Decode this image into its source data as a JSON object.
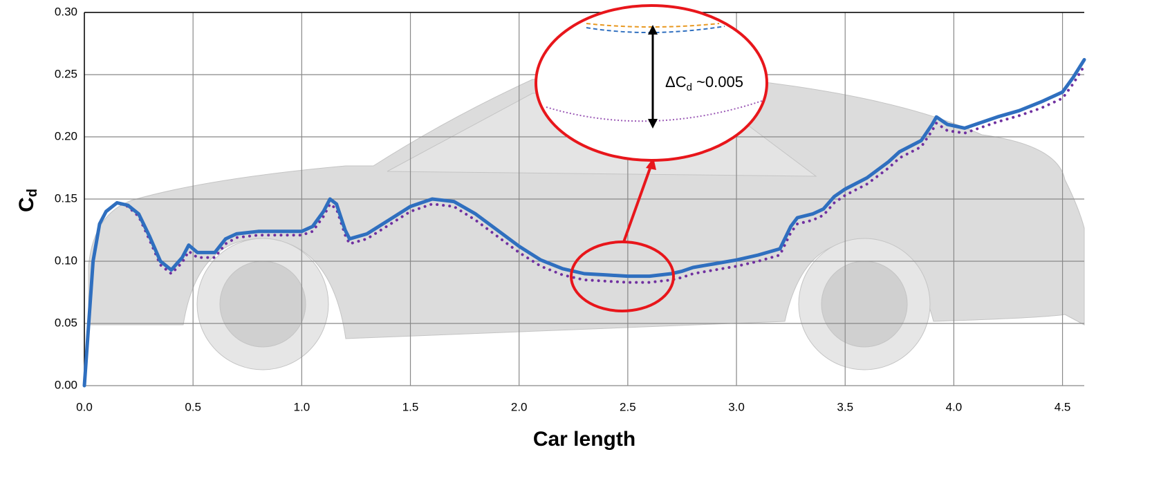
{
  "chart_data": {
    "type": "line",
    "x_label": "Car length",
    "y_label": {
      "main": "C",
      "sub": "d"
    },
    "annotation": {
      "main": "ΔC",
      "sub": "d",
      "rest": " ~0.005"
    },
    "x": [
      0.0,
      0.02,
      0.04,
      0.07,
      0.1,
      0.15,
      0.2,
      0.25,
      0.3,
      0.35,
      0.4,
      0.45,
      0.48,
      0.52,
      0.6,
      0.65,
      0.7,
      0.8,
      0.9,
      1.0,
      1.05,
      1.1,
      1.13,
      1.16,
      1.2,
      1.22,
      1.3,
      1.4,
      1.5,
      1.6,
      1.7,
      1.8,
      1.9,
      2.0,
      2.1,
      2.2,
      2.3,
      2.4,
      2.5,
      2.6,
      2.7,
      2.75,
      2.8,
      2.9,
      3.0,
      3.1,
      3.2,
      3.25,
      3.28,
      3.35,
      3.4,
      3.45,
      3.5,
      3.6,
      3.7,
      3.75,
      3.85,
      3.9,
      3.92,
      3.97,
      4.05,
      4.1,
      4.2,
      4.3,
      4.4,
      4.5,
      4.55,
      4.6
    ],
    "series": [
      {
        "color": "#2f6fbf",
        "style": "solid",
        "values": [
          0.0,
          0.05,
          0.1,
          0.13,
          0.14,
          0.147,
          0.145,
          0.138,
          0.12,
          0.1,
          0.093,
          0.103,
          0.113,
          0.107,
          0.107,
          0.118,
          0.122,
          0.124,
          0.124,
          0.124,
          0.128,
          0.14,
          0.15,
          0.146,
          0.125,
          0.118,
          0.122,
          0.133,
          0.144,
          0.15,
          0.148,
          0.138,
          0.125,
          0.112,
          0.101,
          0.094,
          0.09,
          0.089,
          0.088,
          0.088,
          0.09,
          0.092,
          0.095,
          0.098,
          0.101,
          0.105,
          0.11,
          0.128,
          0.135,
          0.138,
          0.142,
          0.152,
          0.158,
          0.167,
          0.18,
          0.188,
          0.197,
          0.21,
          0.216,
          0.21,
          0.207,
          0.21,
          0.216,
          0.221,
          0.228,
          0.236,
          0.248,
          0.262
        ]
      },
      {
        "color": "#7030a0",
        "style": "dotted",
        "values": [
          0.0,
          0.05,
          0.1,
          0.13,
          0.14,
          0.147,
          0.144,
          0.136,
          0.117,
          0.097,
          0.09,
          0.099,
          0.108,
          0.103,
          0.103,
          0.114,
          0.119,
          0.121,
          0.121,
          0.121,
          0.124,
          0.136,
          0.146,
          0.142,
          0.121,
          0.114,
          0.118,
          0.129,
          0.14,
          0.146,
          0.144,
          0.133,
          0.12,
          0.107,
          0.096,
          0.089,
          0.085,
          0.084,
          0.083,
          0.083,
          0.085,
          0.087,
          0.09,
          0.093,
          0.096,
          0.1,
          0.105,
          0.123,
          0.13,
          0.133,
          0.137,
          0.147,
          0.153,
          0.162,
          0.175,
          0.183,
          0.192,
          0.205,
          0.211,
          0.205,
          0.203,
          0.206,
          0.212,
          0.217,
          0.223,
          0.231,
          0.243,
          0.257
        ]
      }
    ],
    "xlim": [
      0,
      4.6
    ],
    "ylim": [
      0,
      0.3
    ],
    "xticks": [
      {
        "value": 0,
        "label": "0.0"
      },
      0.5,
      {
        "value": 1,
        "label": "1.0"
      },
      1.5,
      {
        "value": 2,
        "label": "2.0"
      },
      2.5,
      {
        "value": 3,
        "label": "3.0"
      },
      3.5,
      {
        "value": 4,
        "label": "4.0"
      },
      4.5
    ],
    "yticks": [
      {
        "value": 0,
        "label": "0.00"
      },
      0.05,
      {
        "value": 0.1,
        "label": "0.10"
      },
      0.15,
      {
        "value": 0.2,
        "label": "0.20"
      },
      0.25,
      {
        "value": 0.3,
        "label": "0.30"
      }
    ],
    "grid": true
  }
}
